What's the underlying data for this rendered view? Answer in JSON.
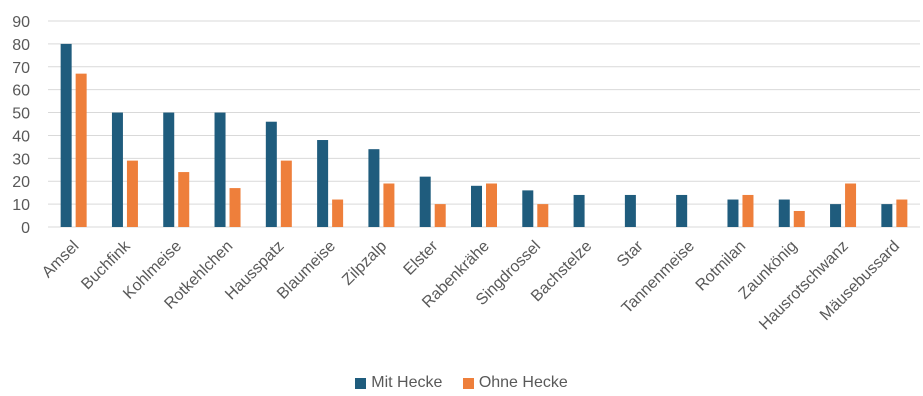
{
  "colors": {
    "mit": "#1f5c7d",
    "ohne": "#ee7f3b",
    "grid": "#d9d9d9",
    "text": "#595959"
  },
  "chart_data": {
    "type": "bar",
    "categories": [
      "Amsel",
      "Buchfink",
      "Kohlmeise",
      "Rotkehlchen",
      "Hausspatz",
      "Blaumeise",
      "Zilpzalp",
      "Elster",
      "Rabenkrähe",
      "Singdrossel",
      "Bachstelze",
      "Star",
      "Tannenmeise",
      "Rotmilan",
      "Zaunkönig",
      "Hausrotschwanz",
      "Mäusebussard"
    ],
    "series": [
      {
        "name": "Mit Hecke",
        "values": [
          80,
          50,
          50,
          50,
          46,
          38,
          34,
          22,
          18,
          16,
          14,
          14,
          14,
          12,
          12,
          10,
          10
        ]
      },
      {
        "name": "Ohne Hecke",
        "values": [
          67,
          29,
          24,
          17,
          29,
          12,
          19,
          10,
          19,
          10,
          0,
          0,
          0,
          14,
          7,
          19,
          12
        ]
      }
    ],
    "ylim": [
      0,
      90
    ],
    "yticks": [
      "0",
      "10",
      "20",
      "30",
      "40",
      "50",
      "60",
      "70",
      "80",
      "90"
    ],
    "grid": true,
    "legend": "bottom"
  }
}
